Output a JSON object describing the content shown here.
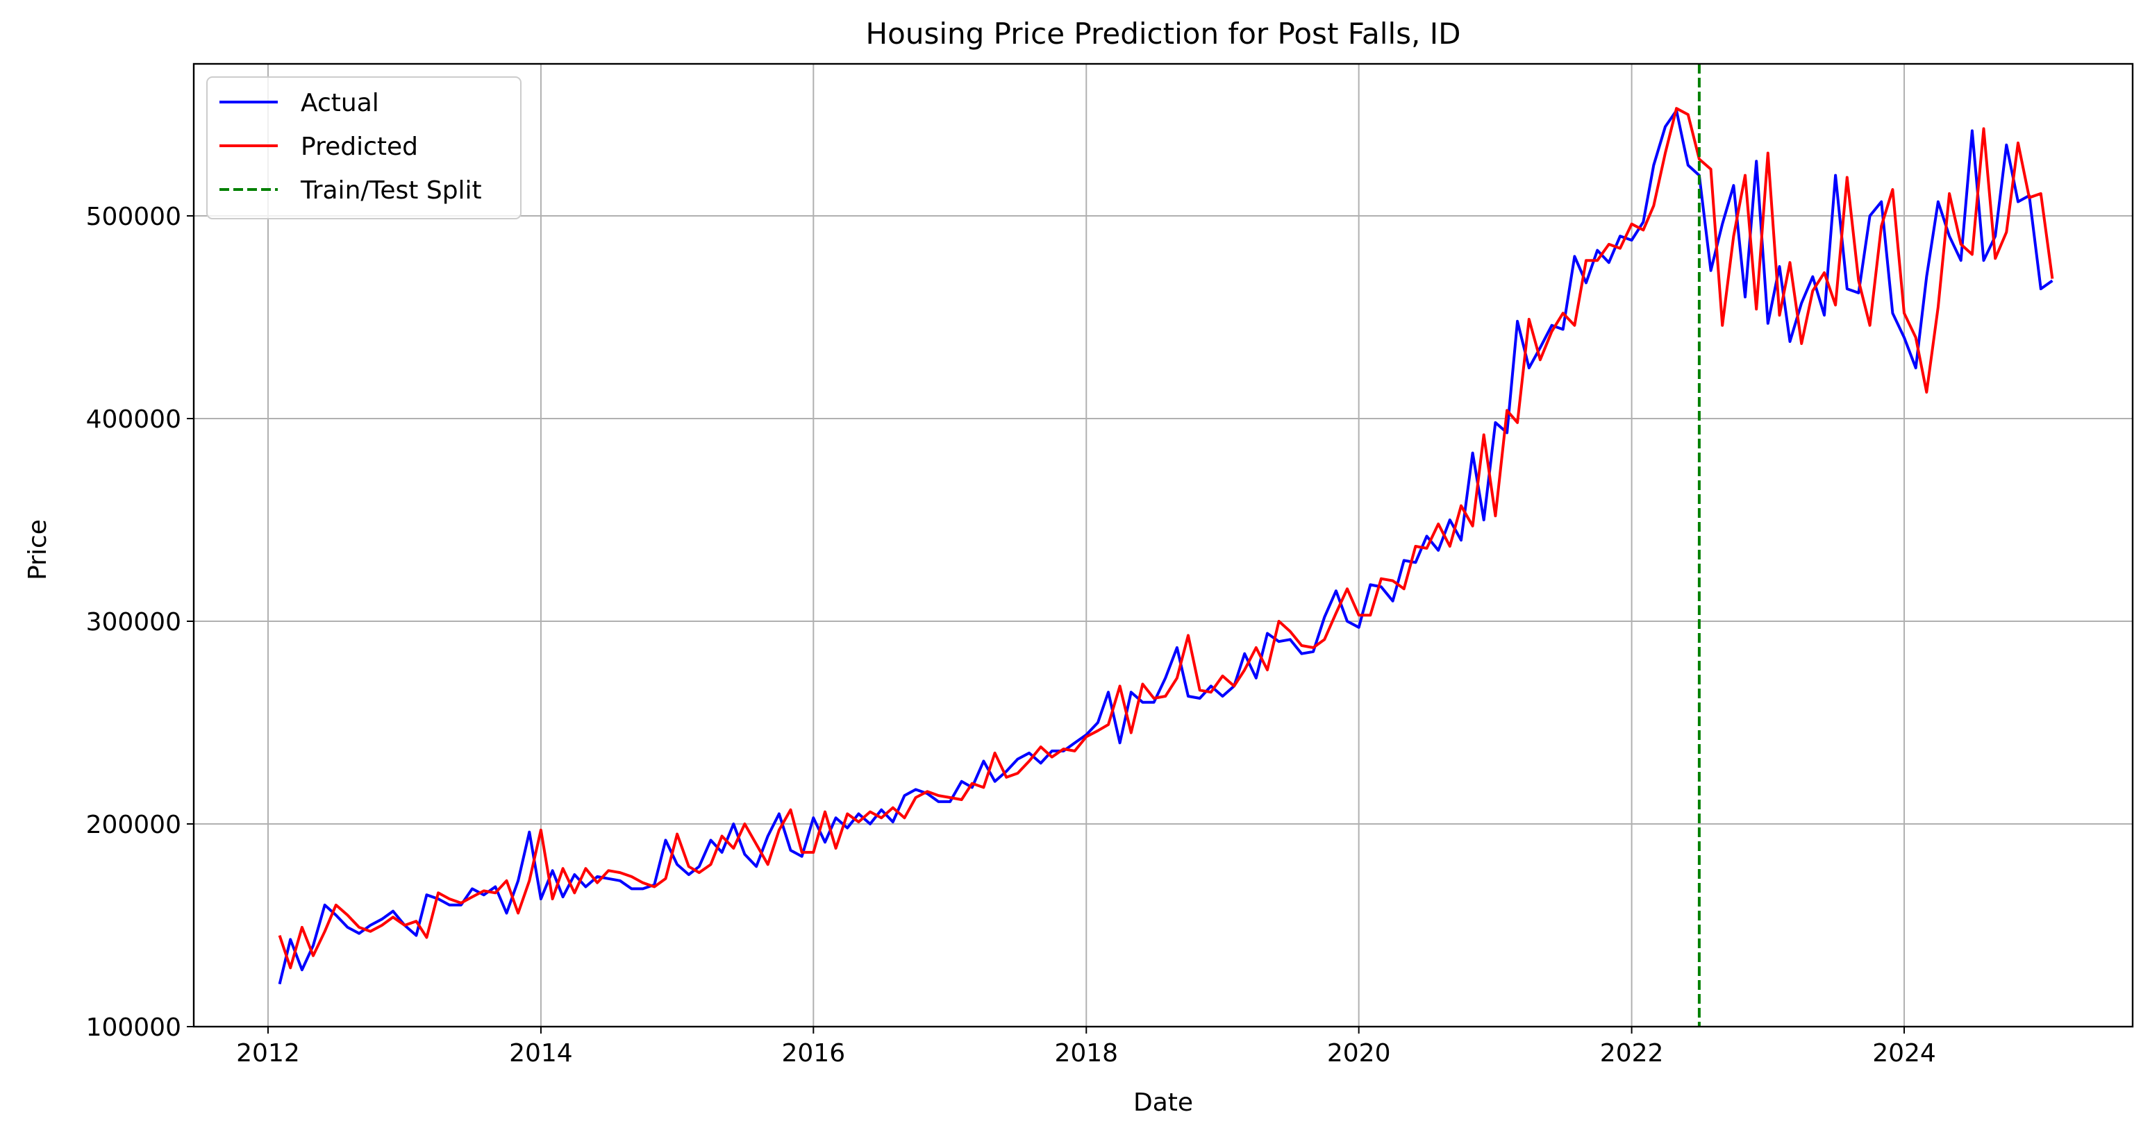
{
  "chart_data": {
    "type": "line",
    "title": "Housing Price Prediction for Post Falls, ID",
    "xlabel": "Date",
    "ylabel": "Price",
    "xlim": [
      "2011-06-16",
      "2025-09-04"
    ],
    "ylim": [
      100000,
      575000
    ],
    "x_ticks": [
      "2012",
      "2014",
      "2016",
      "2018",
      "2020",
      "2022",
      "2024"
    ],
    "y_ticks": [
      "100000",
      "200000",
      "300000",
      "400000",
      "500000"
    ],
    "grid": true,
    "legend_position": "top-left",
    "split_date": "2022-07-01",
    "split_label": "Train/Test Split",
    "colors": {
      "actual": "#0000ff",
      "predicted": "#ff0000",
      "split": "#008000",
      "grid": "#b0b0b0"
    },
    "dates": [
      "2012-02",
      "2012-03",
      "2012-04",
      "2012-05",
      "2012-06",
      "2012-07",
      "2012-08",
      "2012-09",
      "2012-10",
      "2012-11",
      "2012-12",
      "2013-01",
      "2013-02",
      "2013-03",
      "2013-04",
      "2013-05",
      "2013-06",
      "2013-07",
      "2013-08",
      "2013-09",
      "2013-10",
      "2013-11",
      "2013-12",
      "2014-01",
      "2014-02",
      "2014-03",
      "2014-04",
      "2014-05",
      "2014-06",
      "2014-07",
      "2014-08",
      "2014-09",
      "2014-10",
      "2014-11",
      "2014-12",
      "2015-01",
      "2015-02",
      "2015-03",
      "2015-04",
      "2015-05",
      "2015-06",
      "2015-07",
      "2015-08",
      "2015-09",
      "2015-10",
      "2015-11",
      "2015-12",
      "2016-01",
      "2016-02",
      "2016-03",
      "2016-04",
      "2016-05",
      "2016-06",
      "2016-07",
      "2016-08",
      "2016-09",
      "2016-10",
      "2016-11",
      "2016-12",
      "2017-01",
      "2017-02",
      "2017-03",
      "2017-04",
      "2017-05",
      "2017-06",
      "2017-07",
      "2017-08",
      "2017-09",
      "2017-10",
      "2017-11",
      "2017-12",
      "2018-01",
      "2018-02",
      "2018-03",
      "2018-04",
      "2018-05",
      "2018-06",
      "2018-07",
      "2018-08",
      "2018-09",
      "2018-10",
      "2018-11",
      "2018-12",
      "2019-01",
      "2019-02",
      "2019-03",
      "2019-04",
      "2019-05",
      "2019-06",
      "2019-07",
      "2019-08",
      "2019-09",
      "2019-10",
      "2019-11",
      "2019-12",
      "2020-01",
      "2020-02",
      "2020-03",
      "2020-04",
      "2020-05",
      "2020-06",
      "2020-07",
      "2020-08",
      "2020-09",
      "2020-10",
      "2020-11",
      "2020-12",
      "2021-01",
      "2021-02",
      "2021-03",
      "2021-04",
      "2021-05",
      "2021-06",
      "2021-07",
      "2021-08",
      "2021-09",
      "2021-10",
      "2021-11",
      "2021-12",
      "2022-01",
      "2022-02",
      "2022-03",
      "2022-04",
      "2022-05",
      "2022-06",
      "2022-07",
      "2022-08",
      "2022-09",
      "2022-10",
      "2022-11",
      "2022-12",
      "2023-01",
      "2023-02",
      "2023-03",
      "2023-04",
      "2023-05",
      "2023-06",
      "2023-07",
      "2023-08",
      "2023-09",
      "2023-10",
      "2023-11",
      "2023-12",
      "2024-01",
      "2024-02",
      "2024-03",
      "2024-04",
      "2024-05",
      "2024-06",
      "2024-07",
      "2024-08",
      "2024-09",
      "2024-10",
      "2024-11",
      "2024-12",
      "2025-01",
      "2025-02"
    ],
    "series": [
      {
        "name": "Actual",
        "values": [
          121000,
          143000,
          128000,
          140000,
          160000,
          155000,
          149000,
          146000,
          150000,
          153000,
          157000,
          150000,
          145000,
          165000,
          163000,
          160000,
          160000,
          168000,
          165000,
          169000,
          156000,
          172000,
          196000,
          163000,
          177000,
          164000,
          175000,
          169000,
          174000,
          173000,
          172000,
          168000,
          168000,
          170000,
          192000,
          180000,
          175000,
          179000,
          192000,
          186000,
          200000,
          185000,
          179000,
          194000,
          205000,
          187000,
          184000,
          203000,
          191000,
          203000,
          198000,
          205000,
          200000,
          207000,
          201000,
          214000,
          217000,
          215000,
          211000,
          211000,
          221000,
          218000,
          231000,
          221000,
          226000,
          232000,
          235000,
          230000,
          236000,
          236000,
          240000,
          244000,
          250000,
          265000,
          240000,
          265000,
          260000,
          260000,
          272000,
          287000,
          263000,
          262000,
          268000,
          263000,
          268000,
          284000,
          272000,
          294000,
          290000,
          291000,
          284000,
          285000,
          302000,
          315000,
          300000,
          297000,
          318000,
          317000,
          310000,
          330000,
          329000,
          342000,
          335000,
          350000,
          340000,
          383000,
          350000,
          398000,
          393000,
          448000,
          425000,
          435000,
          446000,
          444000,
          480000,
          467000,
          483000,
          477000,
          490000,
          488000,
          497000,
          525000,
          544000,
          552000,
          525000,
          520000,
          473000,
          496000,
          515000,
          460000,
          527000,
          447000,
          475000,
          438000,
          457000,
          470000,
          451000,
          520000,
          464000,
          462000,
          500000,
          507000,
          452000,
          440000,
          425000,
          470000,
          507000,
          490000,
          478000,
          542000,
          478000,
          490000,
          535000,
          507000,
          510000,
          464000,
          468000
        ]
      },
      {
        "name": "Predicted",
        "values": [
          145000,
          129000,
          149000,
          135000,
          147000,
          160000,
          155000,
          149000,
          147000,
          150000,
          154000,
          150000,
          152000,
          144000,
          166000,
          163000,
          161000,
          164000,
          167000,
          166000,
          172000,
          156000,
          172000,
          197000,
          163000,
          178000,
          166000,
          178000,
          171000,
          177000,
          176000,
          174000,
          171000,
          169000,
          173000,
          195000,
          179000,
          176000,
          180000,
          194000,
          188000,
          200000,
          190000,
          180000,
          197000,
          207000,
          186000,
          186000,
          206000,
          188000,
          205000,
          201000,
          206000,
          203000,
          208000,
          203000,
          213000,
          216000,
          214000,
          213000,
          212000,
          220000,
          218000,
          235000,
          223000,
          225000,
          231000,
          238000,
          233000,
          237000,
          236000,
          243000,
          246000,
          249000,
          268000,
          245000,
          269000,
          262000,
          263000,
          272000,
          293000,
          266000,
          265000,
          273000,
          268000,
          276000,
          287000,
          276000,
          300000,
          295000,
          288000,
          287000,
          291000,
          304000,
          316000,
          303000,
          303000,
          321000,
          320000,
          316000,
          337000,
          336000,
          348000,
          337000,
          357000,
          347000,
          392000,
          352000,
          404000,
          398000,
          449000,
          429000,
          443000,
          452000,
          446000,
          478000,
          478000,
          486000,
          484000,
          496000,
          493000,
          505000,
          531000,
          553000,
          550000,
          528000,
          523000,
          446000,
          490000,
          520000,
          454000,
          531000,
          451000,
          477000,
          437000,
          463000,
          472000,
          456000,
          519000,
          468000,
          446000,
          495000,
          513000,
          452000,
          440000,
          413000,
          455000,
          511000,
          486000,
          481000,
          543000,
          479000,
          492000,
          536000,
          509000,
          511000,
          469000
        ]
      }
    ]
  }
}
